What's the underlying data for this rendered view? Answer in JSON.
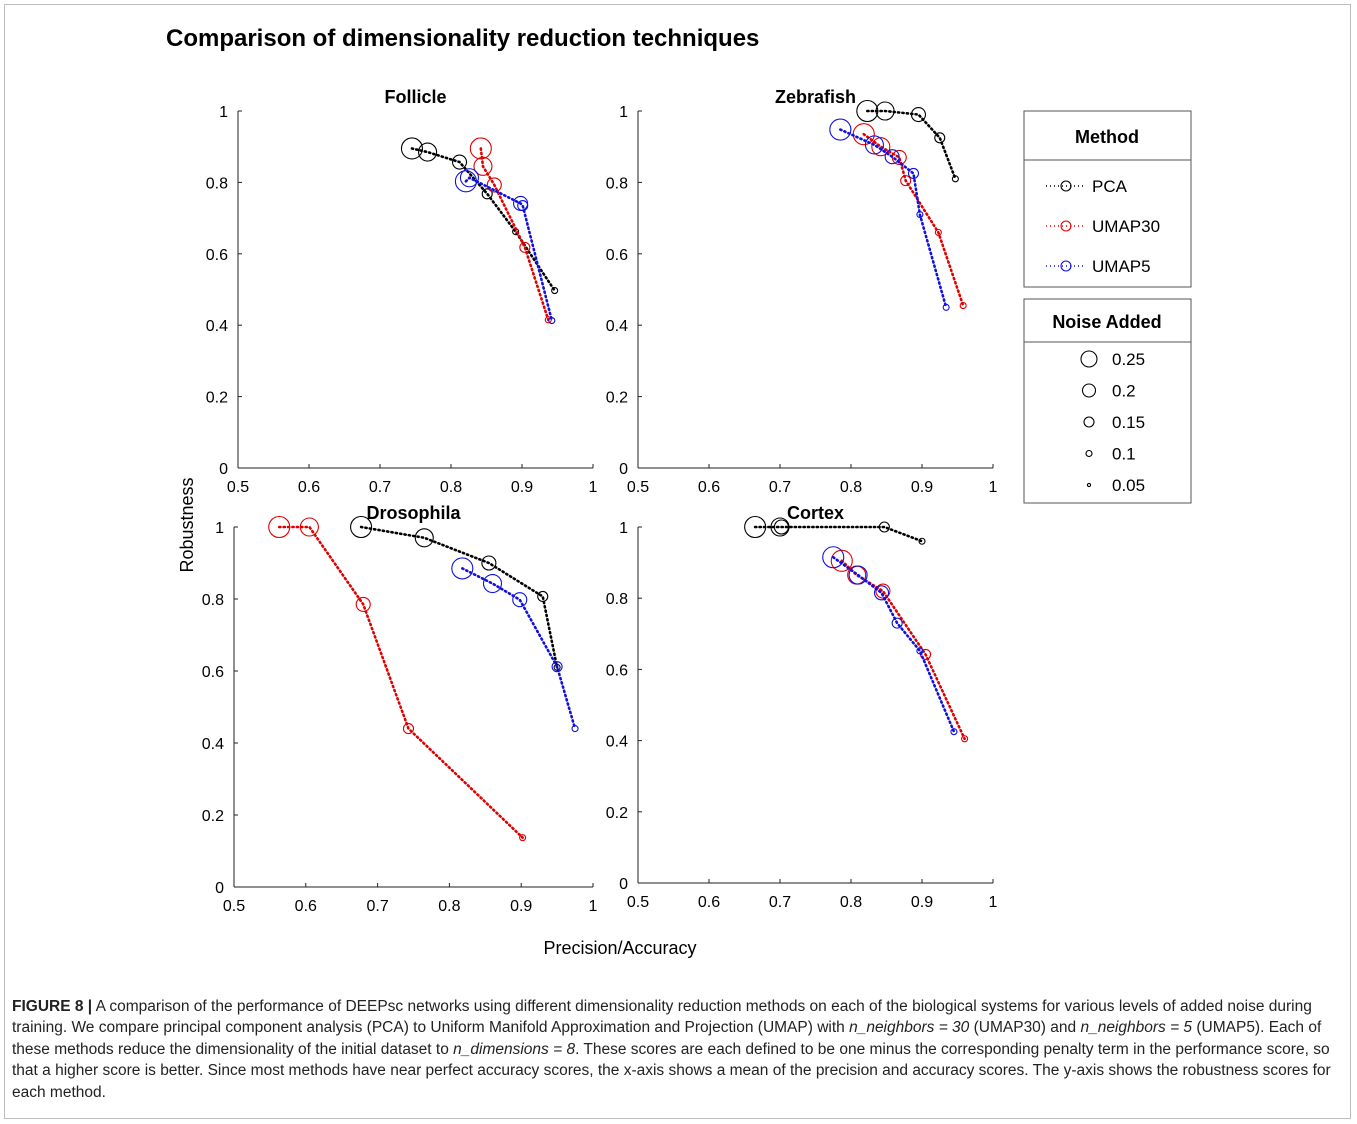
{
  "figure": {
    "title": "Comparison of dimensionality reduction techniques",
    "xlabel": "Precision/Accuracy",
    "ylabel": "Robustness"
  },
  "legend": {
    "method_title": "Method",
    "noise_title": "Noise Added"
  },
  "colors": {
    "PCA": "#000000",
    "UMAP30": "#e00000",
    "UMAP5": "#1010e0"
  },
  "chart_data": [
    {
      "type": "line",
      "title": "Follicle",
      "xlim": [
        0.5,
        1
      ],
      "ylim": [
        0,
        1
      ],
      "xticks": [
        "0.5",
        "0.6",
        "0.7",
        "0.8",
        "0.9",
        "1"
      ],
      "yticks": [
        "0",
        "0.2",
        "0.4",
        "0.6",
        "0.8",
        "1"
      ],
      "series": [
        {
          "name": "PCA",
          "x": [
            0.745,
            0.767,
            0.812,
            0.851,
            0.891,
            0.946
          ],
          "y": [
            0.895,
            0.885,
            0.857,
            0.768,
            0.662,
            0.497
          ]
        },
        {
          "name": "UMAP30",
          "x": [
            0.842,
            0.845,
            0.861,
            0.904,
            0.937
          ],
          "y": [
            0.895,
            0.845,
            0.793,
            0.618,
            0.415
          ]
        },
        {
          "name": "UMAP5",
          "x": [
            0.821,
            0.826,
            0.898,
            0.901,
            0.942
          ],
          "y": [
            0.803,
            0.813,
            0.741,
            0.735,
            0.413
          ]
        }
      ]
    },
    {
      "type": "line",
      "title": "Zebrafish",
      "xlim": [
        0.5,
        1
      ],
      "ylim": [
        0,
        1
      ],
      "xticks": [
        "0.5",
        "0.6",
        "0.7",
        "0.8",
        "0.9",
        "1"
      ],
      "yticks": [
        "0",
        "0.2",
        "0.4",
        "0.6",
        "0.8",
        "1"
      ],
      "series": [
        {
          "name": "PCA",
          "x": [
            0.823,
            0.848,
            0.895,
            0.925,
            0.947
          ],
          "y": [
            1.0,
            1.0,
            0.99,
            0.925,
            0.81
          ]
        },
        {
          "name": "UMAP30",
          "x": [
            0.818,
            0.842,
            0.868,
            0.877,
            0.923,
            0.958
          ],
          "y": [
            0.935,
            0.9,
            0.87,
            0.805,
            0.66,
            0.455
          ]
        },
        {
          "name": "UMAP5",
          "x": [
            0.785,
            0.833,
            0.858,
            0.888,
            0.897,
            0.934
          ],
          "y": [
            0.948,
            0.905,
            0.872,
            0.825,
            0.71,
            0.45
          ]
        }
      ]
    },
    {
      "type": "line",
      "title": "Drosophila",
      "xlim": [
        0.5,
        1
      ],
      "ylim": [
        0,
        1
      ],
      "xticks": [
        "0.5",
        "0.6",
        "0.7",
        "0.8",
        "0.9",
        "1"
      ],
      "yticks": [
        "0",
        "0.2",
        "0.4",
        "0.6",
        "0.8",
        "1"
      ],
      "series": [
        {
          "name": "PCA",
          "x": [
            0.677,
            0.765,
            0.855,
            0.93,
            0.95
          ],
          "y": [
            1.0,
            0.97,
            0.9,
            0.807,
            0.61
          ]
        },
        {
          "name": "UMAP30",
          "x": [
            0.563,
            0.605,
            0.68,
            0.743,
            0.902
          ],
          "y": [
            1.0,
            1.0,
            0.785,
            0.44,
            0.137
          ]
        },
        {
          "name": "UMAP5",
          "x": [
            0.818,
            0.86,
            0.898,
            0.95,
            0.975
          ],
          "y": [
            0.885,
            0.843,
            0.798,
            0.612,
            0.44
          ]
        }
      ]
    },
    {
      "type": "line",
      "title": "Cortex",
      "xlim": [
        0.5,
        1
      ],
      "ylim": [
        0,
        1
      ],
      "xticks": [
        "0.5",
        "0.6",
        "0.7",
        "0.8",
        "0.9",
        "1"
      ],
      "yticks": [
        "0",
        "0.2",
        "0.4",
        "0.6",
        "0.8",
        "1"
      ],
      "series": [
        {
          "name": "PCA",
          "x": [
            0.665,
            0.7,
            0.702,
            0.847,
            0.9
          ],
          "y": [
            1.0,
            1.0,
            1.0,
            1.0,
            0.96
          ]
        },
        {
          "name": "UMAP30",
          "x": [
            0.787,
            0.808,
            0.845,
            0.905,
            0.96
          ],
          "y": [
            0.905,
            0.865,
            0.82,
            0.642,
            0.405
          ]
        },
        {
          "name": "UMAP5",
          "x": [
            0.775,
            0.81,
            0.843,
            0.865,
            0.897,
            0.945
          ],
          "y": [
            0.915,
            0.865,
            0.815,
            0.73,
            0.652,
            0.425
          ]
        }
      ]
    }
  ],
  "method_items": [
    "PCA",
    "UMAP30",
    "UMAP5"
  ],
  "noise_items": [
    "0.25",
    "0.2",
    "0.15",
    "0.1",
    "0.05"
  ],
  "caption": {
    "label": "FIGURE 8 |",
    "seg1": " A comparison of the performance of DEEPsc networks using different dimensionality reduction methods on each of the biological systems for various levels of added noise during training. We compare principal component analysis (PCA) to Uniform Manifold Approximation and Projection (UMAP) with ",
    "it1": "n_neighbors = 30",
    "seg2": " (UMAP30) and ",
    "it2": "n_neighbors = 5",
    "seg3": " (UMAP5). Each of these methods reduce the dimensionality of the initial dataset to ",
    "it3": "n_dimensions = 8",
    "seg4": ". These scores are each defined to be one minus the corresponding penalty term in the performance score, so that a higher score is better. Since most methods have near perfect accuracy scores, the x-axis shows a mean of the precision and accuracy scores. The y-axis shows the robustness scores for each method."
  }
}
